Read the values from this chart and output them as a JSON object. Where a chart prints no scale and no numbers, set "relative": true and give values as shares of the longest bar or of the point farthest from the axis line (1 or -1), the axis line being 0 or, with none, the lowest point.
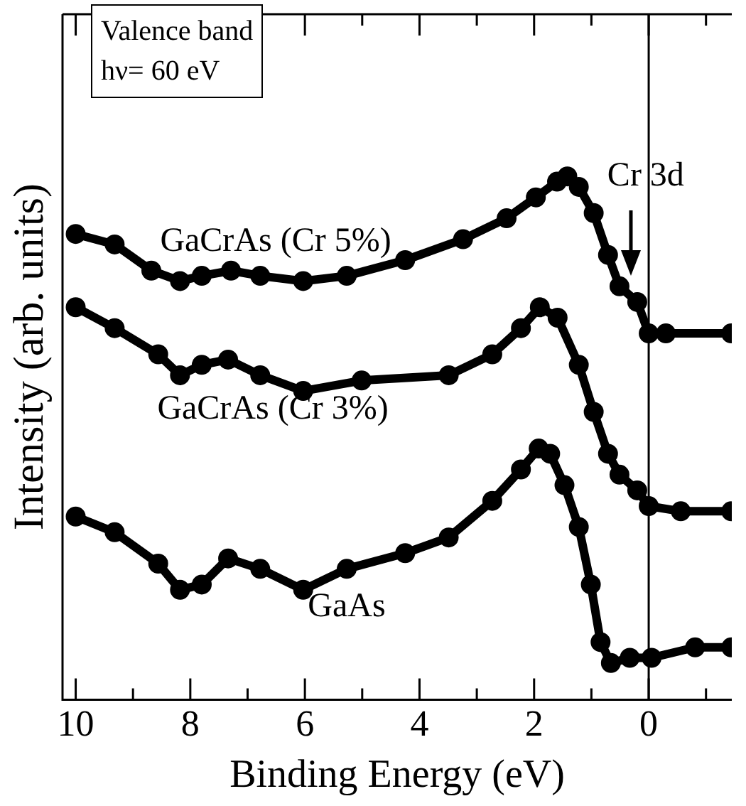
{
  "chart_data": {
    "type": "line",
    "relative": true,
    "xlabel": "Binding Energy (eV)",
    "ylabel": "Intensity (arb. units)",
    "xlim": [
      10.23,
      -1.45
    ],
    "xticks": [
      10,
      {
        "value": 9,
        "label": null
      },
      8,
      {
        "value": 7,
        "label": null
      },
      6,
      {
        "value": 5,
        "label": null
      },
      4,
      {
        "value": 3,
        "label": null
      },
      2,
      {
        "value": 1,
        "label": null
      },
      0,
      {
        "value": -1,
        "label": null
      }
    ],
    "marker": "circle",
    "grid": false,
    "legend": false,
    "annotations": [
      "Valence band",
      "hν= 60 eV",
      {
        "text": "Cr 3d",
        "x": 0.3
      }
    ],
    "ref_lines": [
      {
        "axis": "x",
        "value": 0,
        "color": "#000000"
      }
    ],
    "series": [
      {
        "name": "GaCrAs (Cr 5%)",
        "color": "#000000",
        "x": [
          10,
          9.32,
          8.68,
          8.18,
          7.8,
          7.29,
          6.78,
          6.03,
          5.27,
          4.25,
          3.24,
          2.48,
          1.97,
          1.6,
          1.42,
          1.22,
          0.96,
          0.71,
          0.51,
          0.2,
          0,
          -0.3,
          -1.44
        ],
        "values": [
          0.89,
          0.87,
          0.82,
          0.8,
          0.81,
          0.82,
          0.81,
          0.8,
          0.81,
          0.84,
          0.88,
          0.92,
          0.96,
          0.99,
          1,
          0.98,
          0.93,
          0.85,
          0.79,
          0.76,
          0.7,
          0.7,
          0.7
        ]
      },
      {
        "name": "GaCrAs (Cr 3%)",
        "color": "#000000",
        "x": [
          10,
          9.32,
          8.56,
          8.18,
          7.8,
          7.34,
          6.78,
          6.03,
          5.01,
          3.49,
          2.73,
          2.23,
          1.9,
          1.59,
          1.22,
          0.96,
          0.71,
          0.51,
          0.2,
          0,
          -0.56,
          -1.44
        ],
        "values": [
          0.75,
          0.71,
          0.66,
          0.62,
          0.64,
          0.65,
          0.62,
          0.59,
          0.61,
          0.62,
          0.66,
          0.71,
          0.75,
          0.73,
          0.64,
          0.55,
          0.47,
          0.43,
          0.4,
          0.37,
          0.36,
          0.36
        ]
      },
      {
        "name": "GaAs",
        "color": "#000000",
        "x": [
          10,
          9.32,
          8.56,
          8.18,
          7.8,
          7.34,
          6.78,
          6.03,
          5.27,
          4.25,
          3.49,
          2.73,
          2.23,
          1.92,
          1.72,
          1.47,
          1.22,
          1.01,
          0.84,
          0.66,
          0.33,
          -0.05,
          -0.81,
          -1.44
        ],
        "values": [
          0.35,
          0.32,
          0.26,
          0.21,
          0.22,
          0.27,
          0.25,
          0.21,
          0.25,
          0.28,
          0.31,
          0.38,
          0.44,
          0.48,
          0.47,
          0.41,
          0.33,
          0.22,
          0.11,
          0.07,
          0.08,
          0.08,
          0.1,
          0.1
        ]
      }
    ]
  }
}
